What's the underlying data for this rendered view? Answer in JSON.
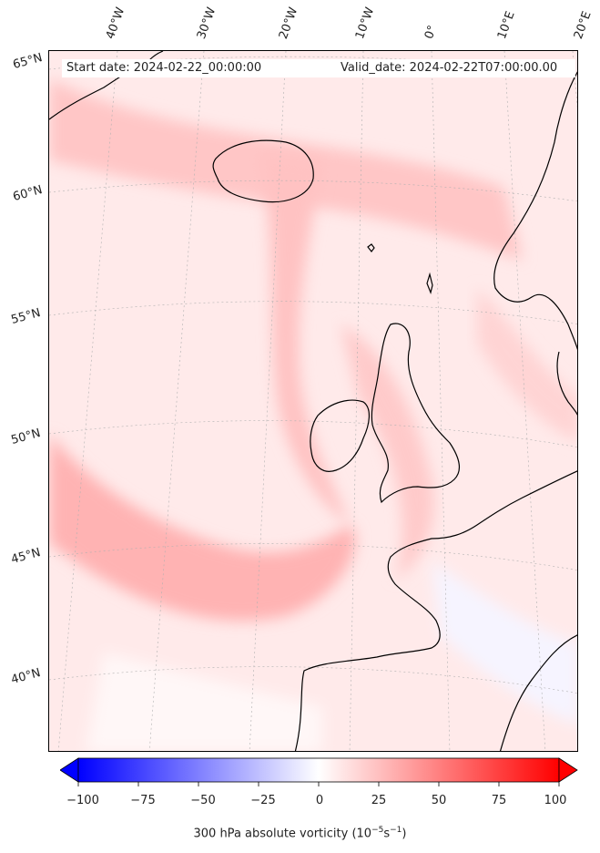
{
  "header": {
    "start_date": "Start date: 2024-02-22_00:00:00",
    "valid_date": "Valid_date: 2024-02-22T07:00:00.00"
  },
  "longitude_labels": [
    "40°W",
    "30°W",
    "20°W",
    "10°W",
    "0°",
    "10°E",
    "20°E"
  ],
  "latitude_labels": [
    "65°N",
    "60°N",
    "55°N",
    "50°N",
    "45°N",
    "40°N"
  ],
  "colorbar": {
    "title": "300 hPa absolute vorticity (10",
    "title_exp1": "−5",
    "title_mid": "s",
    "title_exp2": "−1",
    "title_end": ")",
    "ticks": [
      "−100",
      "−75",
      "−50",
      "−25",
      "0",
      "25",
      "50",
      "75",
      "100"
    ],
    "range": [
      -100,
      100
    ],
    "colors": {
      "min": "#0000ff",
      "mid": "#ffffff",
      "max": "#ff0000"
    }
  },
  "map": {
    "field": "300 hPa absolute vorticity",
    "colors": {
      "background": "#fff0f0",
      "band": "#ffb3b3",
      "land_line": "#000000"
    }
  }
}
